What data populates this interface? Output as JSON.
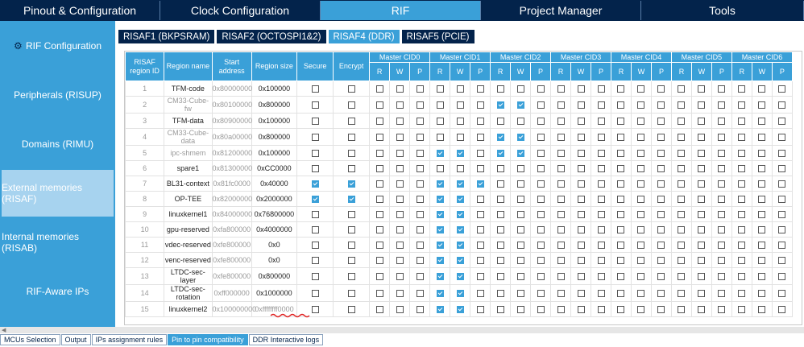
{
  "top_tabs": [
    {
      "label": "Pinout & Configuration",
      "active": false
    },
    {
      "label": "Clock Configuration",
      "active": false
    },
    {
      "label": "RIF",
      "active": true
    },
    {
      "label": "Project Manager",
      "active": false
    },
    {
      "label": "Tools",
      "active": false
    }
  ],
  "sidebar": [
    {
      "label": "RIF Configuration",
      "active": false,
      "icon": "gear-icon"
    },
    {
      "label": "Peripherals (RISUP)",
      "active": false
    },
    {
      "label": "Domains (RIMU)",
      "active": false
    },
    {
      "label": "External memories (RISAF)",
      "active": true
    },
    {
      "label": "Internal memories (RISAB)",
      "active": false
    },
    {
      "label": "RIF-Aware IPs",
      "active": false
    }
  ],
  "sub_tabs": [
    {
      "label": "RISAF1 (BKPSRAM)",
      "active": false
    },
    {
      "label": "RISAF2 (OCTOSPI1&2)",
      "active": false
    },
    {
      "label": "RISAF4 (DDR)",
      "active": true
    },
    {
      "label": "RISAF5 (PCIE)",
      "active": false
    }
  ],
  "table": {
    "headers": {
      "region_id": "RISAF region ID",
      "region_name": "Region name",
      "start_address": "Start address",
      "region_size": "Region size",
      "secure": "Secure",
      "encrypt": "Encrypt",
      "cids": [
        "Master CID0",
        "Master CID1",
        "Master CID2",
        "Master CID3",
        "Master CID4",
        "Master CID5",
        "Master CID6"
      ],
      "rwp": [
        "R",
        "W",
        "P"
      ]
    },
    "rows": [
      {
        "id": "1",
        "name": "TFM-code",
        "name_gray": false,
        "addr": "0x80000000",
        "size": "0x100000",
        "size_gray": false,
        "secure": false,
        "encrypt": false,
        "cid": [
          [
            0,
            0,
            0
          ],
          [
            0,
            0,
            0
          ],
          [
            0,
            0,
            0
          ],
          [
            0,
            0,
            0
          ],
          [
            0,
            0,
            0
          ],
          [
            0,
            0,
            0
          ],
          [
            0,
            0,
            0
          ]
        ]
      },
      {
        "id": "2",
        "name": "CM33-Cube-fw",
        "name_gray": true,
        "addr": "0x80100000",
        "size": "0x800000",
        "size_gray": false,
        "secure": false,
        "encrypt": false,
        "cid": [
          [
            0,
            0,
            0
          ],
          [
            0,
            0,
            0
          ],
          [
            1,
            1,
            0
          ],
          [
            0,
            0,
            0
          ],
          [
            0,
            0,
            0
          ],
          [
            0,
            0,
            0
          ],
          [
            0,
            0,
            0
          ]
        ]
      },
      {
        "id": "3",
        "name": "TFM-data",
        "name_gray": false,
        "addr": "0x80900000",
        "size": "0x100000",
        "size_gray": false,
        "secure": false,
        "encrypt": false,
        "cid": [
          [
            0,
            0,
            0
          ],
          [
            0,
            0,
            0
          ],
          [
            0,
            0,
            0
          ],
          [
            0,
            0,
            0
          ],
          [
            0,
            0,
            0
          ],
          [
            0,
            0,
            0
          ],
          [
            0,
            0,
            0
          ]
        ]
      },
      {
        "id": "4",
        "name": "CM33-Cube-data",
        "name_gray": true,
        "addr": "0x80a00000",
        "size": "0x800000",
        "size_gray": false,
        "secure": false,
        "encrypt": false,
        "cid": [
          [
            0,
            0,
            0
          ],
          [
            0,
            0,
            0
          ],
          [
            1,
            1,
            0
          ],
          [
            0,
            0,
            0
          ],
          [
            0,
            0,
            0
          ],
          [
            0,
            0,
            0
          ],
          [
            0,
            0,
            0
          ]
        ]
      },
      {
        "id": "5",
        "name": "ipc-shmem",
        "name_gray": true,
        "addr": "0x81200000",
        "size": "0x100000",
        "size_gray": false,
        "secure": false,
        "encrypt": false,
        "cid": [
          [
            0,
            0,
            0
          ],
          [
            1,
            1,
            0
          ],
          [
            1,
            1,
            0
          ],
          [
            0,
            0,
            0
          ],
          [
            0,
            0,
            0
          ],
          [
            0,
            0,
            0
          ],
          [
            0,
            0,
            0
          ]
        ]
      },
      {
        "id": "6",
        "name": "spare1",
        "name_gray": false,
        "addr": "0x81300000",
        "size": "0xCC0000",
        "size_gray": false,
        "secure": false,
        "encrypt": false,
        "cid": [
          [
            0,
            0,
            0
          ],
          [
            0,
            0,
            0
          ],
          [
            0,
            0,
            0
          ],
          [
            0,
            0,
            0
          ],
          [
            0,
            0,
            0
          ],
          [
            0,
            0,
            0
          ],
          [
            0,
            0,
            0
          ]
        ]
      },
      {
        "id": "7",
        "name": "BL31-context",
        "name_gray": false,
        "addr": "0x81fc0000",
        "size": "0x40000",
        "size_gray": false,
        "secure": true,
        "encrypt": true,
        "cid": [
          [
            0,
            0,
            0
          ],
          [
            1,
            1,
            1
          ],
          [
            0,
            0,
            0
          ],
          [
            0,
            0,
            0
          ],
          [
            0,
            0,
            0
          ],
          [
            0,
            0,
            0
          ],
          [
            0,
            0,
            0
          ]
        ]
      },
      {
        "id": "8",
        "name": "OP-TEE",
        "name_gray": false,
        "addr": "0x82000000",
        "size": "0x2000000",
        "size_gray": false,
        "secure": true,
        "encrypt": true,
        "cid": [
          [
            0,
            0,
            0
          ],
          [
            1,
            1,
            0
          ],
          [
            0,
            0,
            0
          ],
          [
            0,
            0,
            0
          ],
          [
            0,
            0,
            0
          ],
          [
            0,
            0,
            0
          ],
          [
            0,
            0,
            0
          ]
        ]
      },
      {
        "id": "9",
        "name": "linuxkernel1",
        "name_gray": false,
        "addr": "0x84000000",
        "size": "0x76800000",
        "size_gray": false,
        "secure": false,
        "encrypt": false,
        "cid": [
          [
            0,
            0,
            0
          ],
          [
            1,
            1,
            0
          ],
          [
            0,
            0,
            0
          ],
          [
            0,
            0,
            0
          ],
          [
            0,
            0,
            0
          ],
          [
            0,
            0,
            0
          ],
          [
            0,
            0,
            0
          ]
        ]
      },
      {
        "id": "10",
        "name": "gpu-reserved",
        "name_gray": false,
        "addr": "0xfa800000",
        "size": "0x4000000",
        "size_gray": false,
        "secure": false,
        "encrypt": false,
        "cid": [
          [
            0,
            0,
            0
          ],
          [
            1,
            1,
            0
          ],
          [
            0,
            0,
            0
          ],
          [
            0,
            0,
            0
          ],
          [
            0,
            0,
            0
          ],
          [
            0,
            0,
            0
          ],
          [
            0,
            0,
            0
          ]
        ]
      },
      {
        "id": "11",
        "name": "vdec-reserved",
        "name_gray": false,
        "addr": "0xfe800000",
        "size": "0x0",
        "size_gray": false,
        "secure": false,
        "encrypt": false,
        "cid": [
          [
            0,
            0,
            0
          ],
          [
            1,
            1,
            0
          ],
          [
            0,
            0,
            0
          ],
          [
            0,
            0,
            0
          ],
          [
            0,
            0,
            0
          ],
          [
            0,
            0,
            0
          ],
          [
            0,
            0,
            0
          ]
        ]
      },
      {
        "id": "12",
        "name": "venc-reserved",
        "name_gray": false,
        "addr": "0xfe800000",
        "size": "0x0",
        "size_gray": false,
        "secure": false,
        "encrypt": false,
        "cid": [
          [
            0,
            0,
            0
          ],
          [
            1,
            1,
            0
          ],
          [
            0,
            0,
            0
          ],
          [
            0,
            0,
            0
          ],
          [
            0,
            0,
            0
          ],
          [
            0,
            0,
            0
          ],
          [
            0,
            0,
            0
          ]
        ]
      },
      {
        "id": "13",
        "name": "LTDC-sec-layer",
        "name_gray": false,
        "addr": "0xfe800000",
        "size": "0x800000",
        "size_gray": false,
        "secure": false,
        "encrypt": false,
        "cid": [
          [
            0,
            0,
            0
          ],
          [
            1,
            1,
            0
          ],
          [
            0,
            0,
            0
          ],
          [
            0,
            0,
            0
          ],
          [
            0,
            0,
            0
          ],
          [
            0,
            0,
            0
          ],
          [
            0,
            0,
            0
          ]
        ]
      },
      {
        "id": "14",
        "name": "LTDC-sec-rotation",
        "name_gray": false,
        "addr": "0xff000000",
        "size": "0x1000000",
        "size_gray": false,
        "secure": false,
        "encrypt": false,
        "cid": [
          [
            0,
            0,
            0
          ],
          [
            1,
            1,
            0
          ],
          [
            0,
            0,
            0
          ],
          [
            0,
            0,
            0
          ],
          [
            0,
            0,
            0
          ],
          [
            0,
            0,
            0
          ],
          [
            0,
            0,
            0
          ]
        ]
      },
      {
        "id": "15",
        "name": "linuxkernel2",
        "name_gray": false,
        "addr": "0x100000000",
        "size": "0xffffffff0000",
        "size_gray": true,
        "secure": false,
        "encrypt": false,
        "cid": [
          [
            0,
            0,
            0
          ],
          [
            1,
            1,
            0
          ],
          [
            0,
            0,
            0
          ],
          [
            0,
            0,
            0
          ],
          [
            0,
            0,
            0
          ],
          [
            0,
            0,
            0
          ],
          [
            0,
            0,
            0
          ]
        ]
      }
    ]
  },
  "bottom_tabs": [
    {
      "label": "MCUs Selection",
      "active": false
    },
    {
      "label": "Output",
      "active": false
    },
    {
      "label": "IPs assignment rules",
      "active": false
    },
    {
      "label": "Pin to pin compatibility",
      "active": true
    },
    {
      "label": "DDR Interactive logs",
      "active": false
    }
  ],
  "colors": {
    "navy": "#03234b",
    "accent": "#3aa0d8",
    "error_underline": "#e02020"
  }
}
